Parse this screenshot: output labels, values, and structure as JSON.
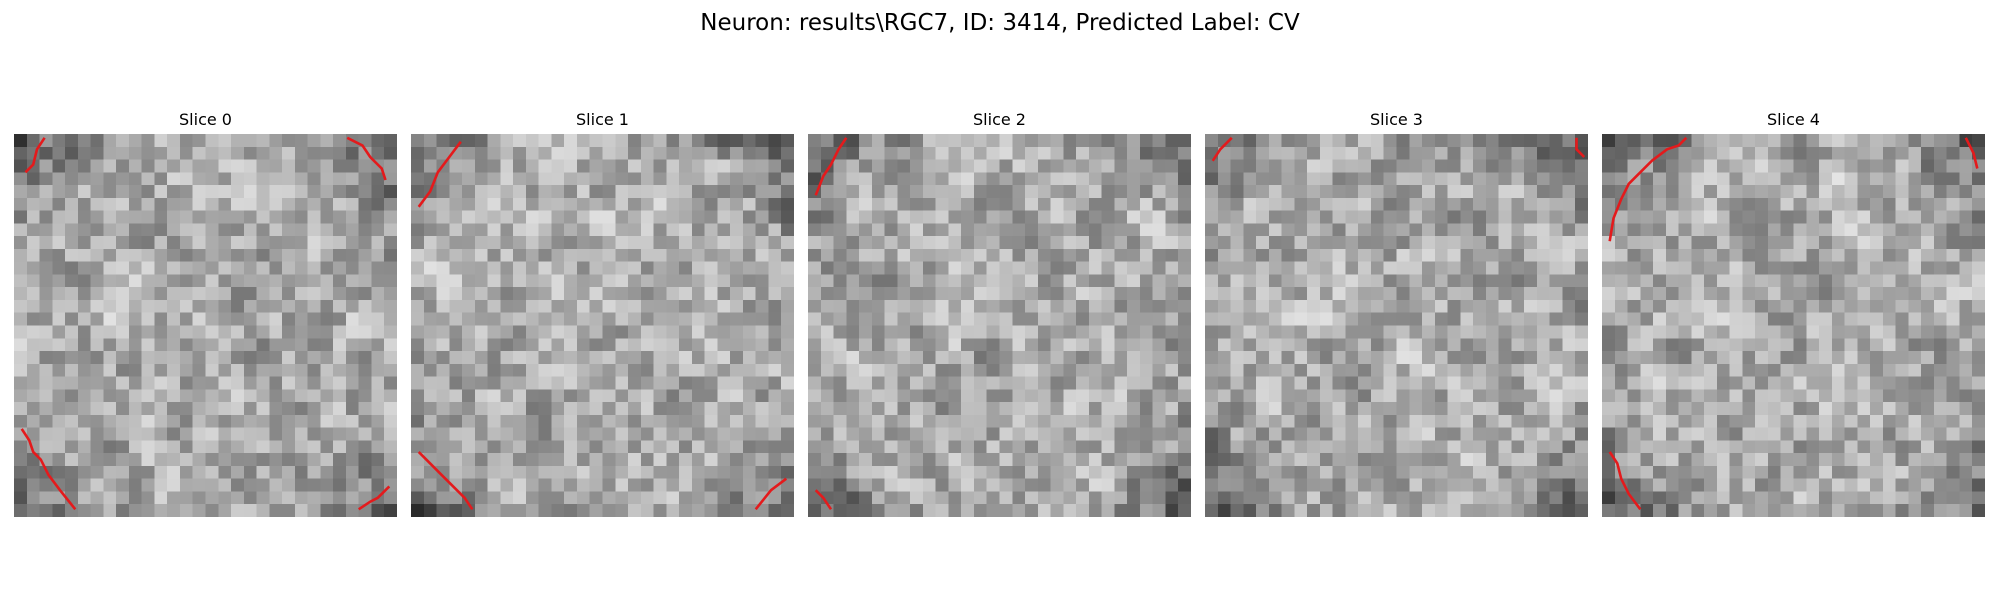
{
  "figure": {
    "title": "Neuron: results\\RGC7, ID: 3414, Predicted Label: CV"
  },
  "panels": [
    {
      "title": "Slice 0",
      "seed": 11,
      "contour_color": "#e41a1c",
      "contours": [
        [
          [
            0.03,
            0.1
          ],
          [
            0.05,
            0.08
          ],
          [
            0.06,
            0.04
          ],
          [
            0.08,
            0.01
          ]
        ],
        [
          [
            0.87,
            0.01
          ],
          [
            0.91,
            0.03
          ],
          [
            0.93,
            0.06
          ],
          [
            0.96,
            0.09
          ],
          [
            0.97,
            0.12
          ]
        ],
        [
          [
            0.02,
            0.77
          ],
          [
            0.04,
            0.8
          ],
          [
            0.05,
            0.83
          ],
          [
            0.07,
            0.85
          ],
          [
            0.09,
            0.89
          ],
          [
            0.12,
            0.93
          ],
          [
            0.16,
            0.98
          ]
        ],
        [
          [
            0.9,
            0.98
          ],
          [
            0.93,
            0.96
          ],
          [
            0.95,
            0.95
          ],
          [
            0.98,
            0.92
          ]
        ]
      ]
    },
    {
      "title": "Slice 1",
      "seed": 23,
      "contour_color": "#e41a1c",
      "contours": [
        [
          [
            0.02,
            0.19
          ],
          [
            0.05,
            0.15
          ],
          [
            0.07,
            0.1
          ],
          [
            0.1,
            0.06
          ],
          [
            0.13,
            0.02
          ]
        ],
        [
          [
            0.02,
            0.83
          ],
          [
            0.08,
            0.89
          ],
          [
            0.14,
            0.95
          ],
          [
            0.16,
            0.98
          ]
        ],
        [
          [
            0.9,
            0.98
          ],
          [
            0.94,
            0.93
          ],
          [
            0.98,
            0.9
          ]
        ]
      ]
    },
    {
      "title": "Slice 2",
      "seed": 37,
      "contour_color": "#e41a1c",
      "contours": [
        [
          [
            0.02,
            0.16
          ],
          [
            0.04,
            0.11
          ],
          [
            0.06,
            0.08
          ],
          [
            0.08,
            0.04
          ],
          [
            0.1,
            0.01
          ]
        ],
        [
          [
            0.02,
            0.93
          ],
          [
            0.04,
            0.95
          ],
          [
            0.06,
            0.98
          ]
        ]
      ]
    },
    {
      "title": "Slice 3",
      "seed": 53,
      "contour_color": "#e41a1c",
      "contours": [
        [
          [
            0.02,
            0.07
          ],
          [
            0.04,
            0.04
          ],
          [
            0.07,
            0.01
          ]
        ],
        [
          [
            0.97,
            0.01
          ],
          [
            0.97,
            0.04
          ],
          [
            0.99,
            0.06
          ]
        ]
      ]
    },
    {
      "title": "Slice 4",
      "seed": 71,
      "contour_color": "#e41a1c",
      "contours": [
        [
          [
            0.02,
            0.28
          ],
          [
            0.03,
            0.22
          ],
          [
            0.05,
            0.17
          ],
          [
            0.07,
            0.13
          ],
          [
            0.1,
            0.1
          ],
          [
            0.13,
            0.07
          ],
          [
            0.17,
            0.04
          ],
          [
            0.2,
            0.03
          ],
          [
            0.22,
            0.01
          ]
        ],
        [
          [
            0.95,
            0.01
          ],
          [
            0.97,
            0.05
          ],
          [
            0.98,
            0.09
          ]
        ],
        [
          [
            0.02,
            0.83
          ],
          [
            0.04,
            0.86
          ],
          [
            0.05,
            0.9
          ],
          [
            0.07,
            0.94
          ],
          [
            0.1,
            0.98
          ]
        ]
      ]
    }
  ]
}
